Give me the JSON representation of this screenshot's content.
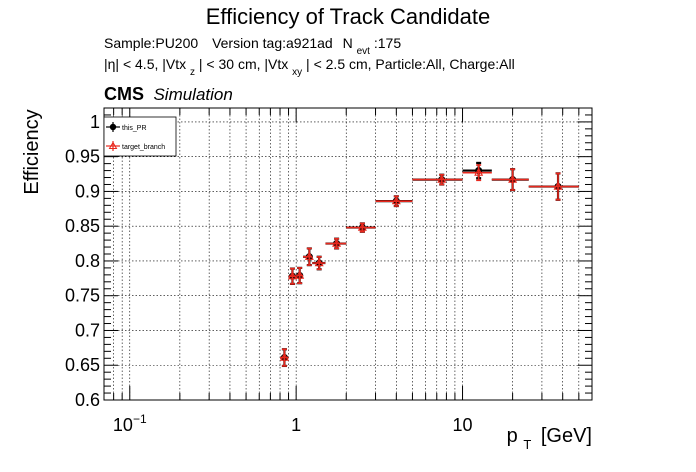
{
  "chart_data": {
    "type": "scatter",
    "title": "Efficiency of Track Candidate",
    "subtitle_line1": {
      "sample": "Sample:PU200",
      "version": "Version tag:a921ad",
      "nevt_main": "N",
      "nevt_sub": "evt",
      "nevt_value": ":175"
    },
    "subtitle_line2": {
      "p1": "|η| < 4.5, |Vtx",
      "s1": "z",
      "p2": "| < 30 cm, |Vtx",
      "s2": "xy",
      "p3": "| < 2.5 cm, Particle:All, Charge:All"
    },
    "cms_label": "CMS",
    "simulation_label": "Simulation",
    "ylabel": "Efficiency",
    "xlabel_main": "p",
    "xlabel_sub": "T",
    "xlabel_unit": "[GeV]",
    "xscale": "log",
    "xlim": [
      0.07,
      60
    ],
    "ylim": [
      0.6,
      1.02
    ],
    "grid": true,
    "yticks": [
      0.6,
      0.65,
      0.7,
      0.75,
      0.8,
      0.85,
      0.9,
      0.95,
      1
    ],
    "ytick_labels": [
      "0.6",
      "0.65",
      "0.7",
      "0.75",
      "0.8",
      "0.85",
      "0.9",
      "0.95",
      "1"
    ],
    "xtick_labels": [
      {
        "value": 0.1,
        "base": "10",
        "exp": "−1"
      },
      {
        "value": 1,
        "base": "1",
        "exp": ""
      },
      {
        "value": 10,
        "base": "10",
        "exp": ""
      }
    ],
    "legend_position": "top-left",
    "series": [
      {
        "name": "this_PR",
        "color": "#000000",
        "points": [
          {
            "x": 0.85,
            "xlo": 0.8,
            "xhi": 0.9,
            "y": 0.661,
            "yerr": 0.012
          },
          {
            "x": 0.95,
            "xlo": 0.9,
            "xhi": 1.0,
            "y": 0.778,
            "yerr": 0.011
          },
          {
            "x": 1.05,
            "xlo": 1.0,
            "xhi": 1.1,
            "y": 0.779,
            "yerr": 0.011
          },
          {
            "x": 1.2,
            "xlo": 1.1,
            "xhi": 1.25,
            "y": 0.806,
            "yerr": 0.012
          },
          {
            "x": 1.375,
            "xlo": 1.25,
            "xhi": 1.5,
            "y": 0.797,
            "yerr": 0.009
          },
          {
            "x": 1.75,
            "xlo": 1.5,
            "xhi": 2.0,
            "y": 0.825,
            "yerr": 0.007
          },
          {
            "x": 2.5,
            "xlo": 2.0,
            "xhi": 3.0,
            "y": 0.848,
            "yerr": 0.006
          },
          {
            "x": 4.0,
            "xlo": 3.0,
            "xhi": 5.0,
            "y": 0.886,
            "yerr": 0.007
          },
          {
            "x": 7.5,
            "xlo": 5.0,
            "xhi": 10.0,
            "y": 0.917,
            "yerr": 0.007
          },
          {
            "x": 12.5,
            "xlo": 10.0,
            "xhi": 15.0,
            "y": 0.93,
            "yerr": 0.011
          },
          {
            "x": 20.0,
            "xlo": 15.0,
            "xhi": 25.0,
            "y": 0.917,
            "yerr": 0.015
          },
          {
            "x": 37.5,
            "xlo": 25.0,
            "xhi": 50.0,
            "y": 0.907,
            "yerr": 0.019
          }
        ]
      },
      {
        "name": "target_branch",
        "color": "#e8281e",
        "points": [
          {
            "x": 0.85,
            "xlo": 0.8,
            "xhi": 0.9,
            "y": 0.661,
            "yerr": 0.012
          },
          {
            "x": 0.95,
            "xlo": 0.9,
            "xhi": 1.0,
            "y": 0.778,
            "yerr": 0.011
          },
          {
            "x": 1.05,
            "xlo": 1.0,
            "xhi": 1.1,
            "y": 0.779,
            "yerr": 0.011
          },
          {
            "x": 1.2,
            "xlo": 1.1,
            "xhi": 1.25,
            "y": 0.806,
            "yerr": 0.012
          },
          {
            "x": 1.375,
            "xlo": 1.25,
            "xhi": 1.5,
            "y": 0.797,
            "yerr": 0.009
          },
          {
            "x": 1.75,
            "xlo": 1.5,
            "xhi": 2.0,
            "y": 0.825,
            "yerr": 0.007
          },
          {
            "x": 2.5,
            "xlo": 2.0,
            "xhi": 3.0,
            "y": 0.848,
            "yerr": 0.006
          },
          {
            "x": 4.0,
            "xlo": 3.0,
            "xhi": 5.0,
            "y": 0.886,
            "yerr": 0.007
          },
          {
            "x": 7.5,
            "xlo": 5.0,
            "xhi": 10.0,
            "y": 0.917,
            "yerr": 0.007
          },
          {
            "x": 12.5,
            "xlo": 10.0,
            "xhi": 15.0,
            "y": 0.927,
            "yerr": 0.011
          },
          {
            "x": 20.0,
            "xlo": 15.0,
            "xhi": 25.0,
            "y": 0.917,
            "yerr": 0.015
          },
          {
            "x": 37.5,
            "xlo": 25.0,
            "xhi": 50.0,
            "y": 0.907,
            "yerr": 0.019
          }
        ]
      }
    ]
  }
}
